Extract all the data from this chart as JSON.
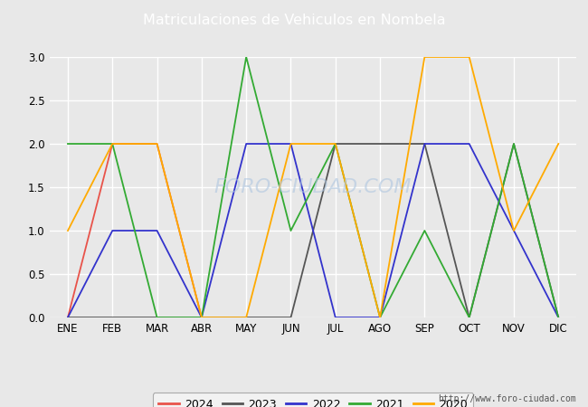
{
  "title": "Matriculaciones de Vehiculos en Nombela",
  "title_bg_color": "#4472c4",
  "title_text_color": "#ffffff",
  "months": [
    "ENE",
    "FEB",
    "MAR",
    "ABR",
    "MAY",
    "JUN",
    "JUL",
    "AGO",
    "SEP",
    "OCT",
    "NOV",
    "DIC"
  ],
  "series": {
    "2024": {
      "color": "#e8534a",
      "data": [
        0,
        2,
        2,
        0,
        0,
        null,
        null,
        null,
        null,
        null,
        null,
        null
      ]
    },
    "2023": {
      "color": "#555555",
      "data": [
        0,
        0,
        0,
        0,
        0,
        0,
        2,
        2,
        2,
        0,
        2,
        0
      ]
    },
    "2022": {
      "color": "#3333cc",
      "data": [
        0,
        1,
        1,
        0,
        2,
        2,
        0,
        0,
        2,
        2,
        1,
        0
      ]
    },
    "2021": {
      "color": "#33aa33",
      "data": [
        2,
        2,
        0,
        0,
        3,
        1,
        2,
        0,
        1,
        0,
        2,
        0
      ]
    },
    "2020": {
      "color": "#ffaa00",
      "data": [
        1,
        2,
        2,
        0,
        0,
        2,
        2,
        0,
        3,
        3,
        1,
        2
      ]
    }
  },
  "ylim": [
    0,
    3.0
  ],
  "yticks": [
    0.0,
    0.5,
    1.0,
    1.5,
    2.0,
    2.5,
    3.0
  ],
  "fig_bg_color": "#e8e8e8",
  "plot_bg_color": "#e8e8e8",
  "grid_color": "#ffffff",
  "watermark": "FORO-CIUDAD.COM",
  "url": "http://www.foro-ciudad.com",
  "legend_order": [
    "2024",
    "2023",
    "2022",
    "2021",
    "2020"
  ]
}
